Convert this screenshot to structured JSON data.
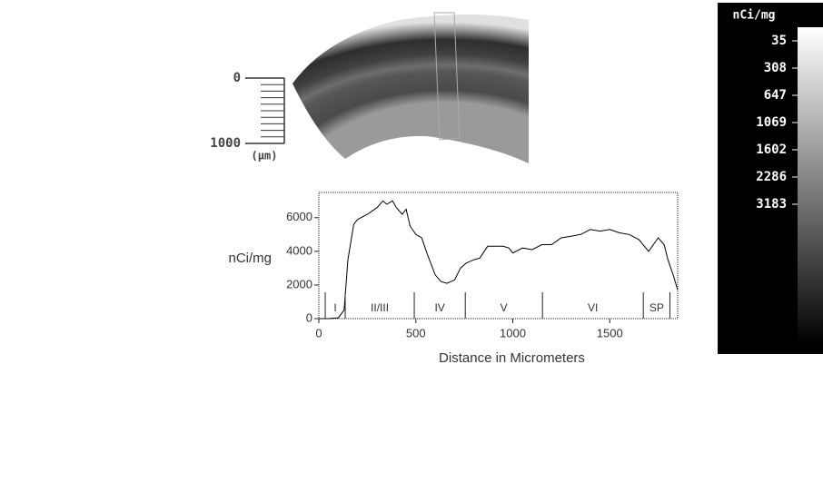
{
  "chart_data": {
    "type": "line",
    "ylabel": "nCi/mg",
    "xlabel": "Distance in Micrometers",
    "x": [
      0,
      50,
      100,
      130,
      150,
      180,
      200,
      250,
      300,
      330,
      350,
      380,
      400,
      430,
      450,
      470,
      500,
      530,
      560,
      600,
      630,
      660,
      700,
      730,
      760,
      800,
      830,
      870,
      900,
      950,
      980,
      1000,
      1050,
      1100,
      1150,
      1200,
      1250,
      1300,
      1350,
      1400,
      1450,
      1500,
      1550,
      1600,
      1650,
      1700,
      1750,
      1780,
      1800,
      1830,
      1850
    ],
    "series": [
      {
        "color": "#000000",
        "values": [
          0,
          0,
          50,
          500,
          3500,
          5600,
          5900,
          6200,
          6600,
          7000,
          6800,
          7000,
          6600,
          6200,
          6500,
          5500,
          5000,
          4800,
          3800,
          2600,
          2200,
          2100,
          2300,
          3000,
          3300,
          3500,
          3600,
          4300,
          4300,
          4300,
          4200,
          3900,
          4200,
          4100,
          4400,
          4400,
          4800,
          4900,
          5000,
          5300,
          5200,
          5300,
          5100,
          5000,
          4700,
          4000,
          4800,
          4400,
          3500,
          2500,
          1700
        ]
      }
    ],
    "xlim": [
      0,
      1850
    ],
    "ylim": [
      0,
      7500
    ],
    "xticks": [
      0,
      500,
      1000,
      1500
    ],
    "yticks": [
      0,
      2000,
      4000,
      6000
    ],
    "layers": [
      {
        "label": "I",
        "start": 33,
        "end": 136
      },
      {
        "label": "II/III",
        "start": 136,
        "end": 492
      },
      {
        "label": "IV",
        "start": 492,
        "end": 755
      },
      {
        "label": "V",
        "start": 755,
        "end": 1153
      },
      {
        "label": "VI",
        "start": 1153,
        "end": 1673
      },
      {
        "label": "SP",
        "start": 1673,
        "end": 1810
      }
    ]
  },
  "scale_bar": {
    "ticks": [
      0,
      1000
    ],
    "unit": "(µm)"
  },
  "colorbar": {
    "title": "nCi/mg",
    "labels": [
      "35",
      "308",
      "647",
      "1069",
      "1602",
      "2286",
      "3183"
    ]
  }
}
